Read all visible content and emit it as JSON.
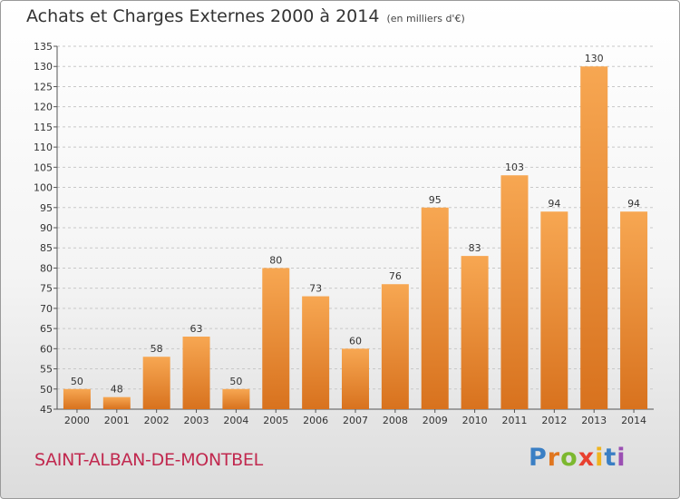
{
  "header": {
    "title": "Achats et Charges Externes 2000 à 2014",
    "subtitle": "(en milliers d'€)"
  },
  "footer": {
    "commune": "SAINT-ALBAN-DE-MONTBEL",
    "logo": "Proxiti"
  },
  "colors": {
    "bar_light": "#f7a752",
    "bar_dark": "#d8721e",
    "commune_text": "#c1294f"
  },
  "chart_data": {
    "type": "bar",
    "title": "Achats et Charges Externes 2000 à 2014",
    "subtitle": "(en milliers d'€)",
    "categories": [
      "2000",
      "2001",
      "2002",
      "2003",
      "2004",
      "2005",
      "2006",
      "2007",
      "2008",
      "2009",
      "2010",
      "2011",
      "2012",
      "2013",
      "2014"
    ],
    "values": [
      50,
      48,
      58,
      63,
      50,
      80,
      73,
      60,
      76,
      95,
      83,
      103,
      94,
      130,
      94
    ],
    "xlabel": "",
    "ylabel": "",
    "ylim": [
      45,
      135
    ],
    "yticks": [
      45,
      50,
      55,
      60,
      65,
      70,
      75,
      80,
      85,
      90,
      95,
      100,
      105,
      110,
      115,
      120,
      125,
      130,
      135
    ],
    "grid": "horizontal dashed",
    "data_labels": true
  }
}
